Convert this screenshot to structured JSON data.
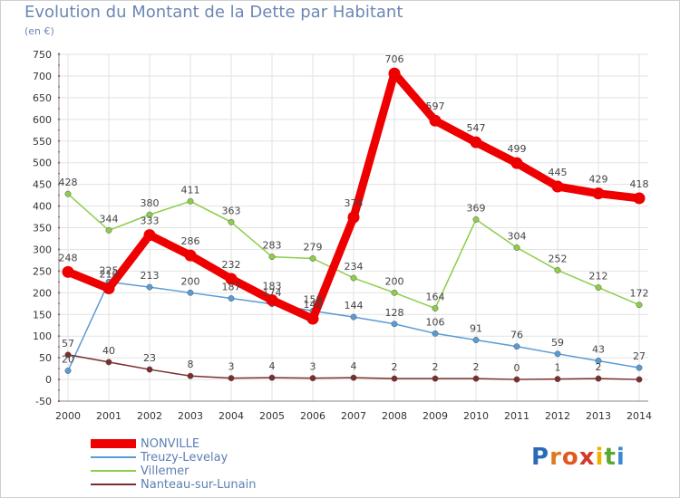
{
  "title": "Evolution du Montant de la Dette par Habitant",
  "subtitle": "(en €)",
  "brand": {
    "letters": [
      "P",
      "r",
      "o",
      "x",
      "i",
      "t",
      "i"
    ],
    "colors": [
      "#2a6bb8",
      "#e07a1f",
      "#e05a1f",
      "#d43a2a",
      "#f0b000",
      "#5aa832",
      "#3a8ad0"
    ]
  },
  "chart_data": {
    "type": "line",
    "title": "Evolution du Montant de la Dette par Habitant",
    "ylabel": "(en €)",
    "xlabel": "",
    "x": [
      "2000",
      "2001",
      "2002",
      "2003",
      "2004",
      "2005",
      "2006",
      "2007",
      "2008",
      "2009",
      "2010",
      "2011",
      "2012",
      "2013",
      "2014"
    ],
    "ylim": [
      -50,
      750
    ],
    "yticks": [
      "-50",
      "0",
      "50",
      "100",
      "150",
      "200",
      "250",
      "300",
      "350",
      "400",
      "450",
      "500",
      "550",
      "600",
      "650",
      "700",
      "750"
    ],
    "grid": true,
    "legend_position": "bottom-left",
    "series": [
      {
        "name": "Villemer",
        "color": "#8dcd4a",
        "values": [
          428,
          344,
          380,
          411,
          363,
          283,
          279,
          234,
          200,
          164,
          369,
          304,
          252,
          212,
          172
        ],
        "labels": [
          "428",
          "344",
          "380",
          "411",
          "363",
          "283",
          "279",
          "234",
          "200",
          "164",
          "369",
          "304",
          "252",
          "212",
          "172"
        ]
      },
      {
        "name": "Treuzy-Levelay",
        "color": "#5b9bd5",
        "values": [
          20,
          225,
          213,
          200,
          187,
          174,
          158,
          144,
          128,
          106,
          91,
          76,
          59,
          43,
          27
        ],
        "labels": [
          "20",
          "225",
          "213",
          "200",
          "187",
          "174",
          "158",
          "144",
          "128",
          "106",
          "91",
          "76",
          "59",
          "43",
          "27"
        ]
      },
      {
        "name": "Nanteau-sur-Lunain",
        "color": "#7a2e2e",
        "values": [
          57,
          40,
          23,
          8,
          3,
          4,
          3,
          4,
          2,
          2,
          2,
          0,
          1,
          2,
          0
        ],
        "labels": [
          "57",
          "40",
          "23",
          "8",
          "3",
          "4",
          "3",
          "4",
          "2",
          "2",
          "2",
          "0",
          "1",
          "2",
          ""
        ]
      },
      {
        "name": "NONVILLE",
        "color": "#ee0000",
        "values": [
          248,
          210,
          333,
          286,
          232,
          183,
          140,
          374,
          706,
          597,
          547,
          499,
          445,
          429,
          418
        ],
        "labels": [
          "248",
          "210",
          "333",
          "286",
          "232",
          "183",
          "140",
          "374",
          "706",
          "597",
          "547",
          "499",
          "445",
          "429",
          "418"
        ]
      }
    ]
  }
}
